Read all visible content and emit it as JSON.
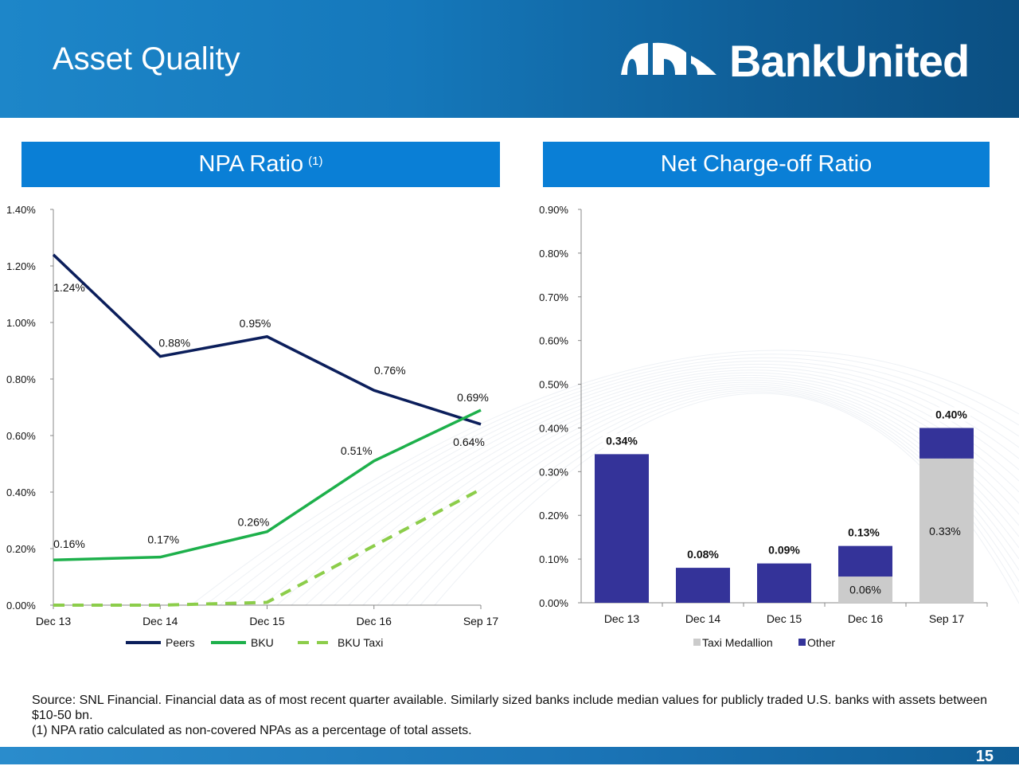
{
  "header": {
    "title": "Asset Quality",
    "logo_text": "BankUnited"
  },
  "panels": [
    {
      "title": "NPA Ratio",
      "superscript": "(1)"
    },
    {
      "title": "Net Charge-off Ratio",
      "superscript": ""
    }
  ],
  "chart_data": [
    {
      "type": "line",
      "title": "NPA Ratio (1)",
      "categories": [
        "Dec 13",
        "Dec 14",
        "Dec 15",
        "Dec 16",
        "Sep 17"
      ],
      "ylim": [
        0,
        1.4
      ],
      "yticks": [
        "0.00%",
        "0.20%",
        "0.40%",
        "0.60%",
        "0.80%",
        "1.00%",
        "1.20%",
        "1.40%"
      ],
      "legend_position": "bottom",
      "series": [
        {
          "name": "Peers",
          "color": "#0b1e5b",
          "style": "solid",
          "values": [
            1.24,
            0.88,
            0.95,
            0.76,
            0.64
          ],
          "labels": [
            "1.24%",
            "0.88%",
            "0.95%",
            "0.76%",
            "0.64%"
          ]
        },
        {
          "name": "BKU",
          "color": "#1db04b",
          "style": "solid",
          "values": [
            0.16,
            0.17,
            0.26,
            0.51,
            0.69
          ],
          "labels": [
            "0.16%",
            "0.17%",
            "0.26%",
            "0.51%",
            "0.69%"
          ]
        },
        {
          "name": "BKU Taxi",
          "color": "#8ccd4a",
          "style": "dashed",
          "values": [
            0.0,
            0.0,
            0.01,
            0.21,
            0.41
          ],
          "labels": []
        }
      ]
    },
    {
      "type": "bar",
      "stacked": true,
      "title": "Net Charge-off Ratio",
      "categories": [
        "Dec 13",
        "Dec 14",
        "Dec 15",
        "Dec 16",
        "Sep 17"
      ],
      "ylim": [
        0,
        0.9
      ],
      "yticks": [
        "0.00%",
        "0.10%",
        "0.20%",
        "0.30%",
        "0.40%",
        "0.50%",
        "0.60%",
        "0.70%",
        "0.80%",
        "0.90%"
      ],
      "legend_position": "bottom",
      "series": [
        {
          "name": "Taxi Medallion",
          "color": "#cbcbcb",
          "values": [
            0,
            0,
            0,
            0.06,
            0.33
          ],
          "labels": [
            "",
            "",
            "",
            "0.06%",
            "0.33%"
          ]
        },
        {
          "name": "Other",
          "color": "#343399",
          "values": [
            0.34,
            0.08,
            0.09,
            0.07,
            0.07
          ],
          "labels": []
        }
      ],
      "total_labels": [
        "0.34%",
        "0.08%",
        "0.09%",
        "0.13%",
        "0.40%"
      ]
    }
  ],
  "footnotes": {
    "source": "Source: SNL Financial. Financial data as of most recent quarter available. Similarly sized banks include median values for publicly traded U.S. banks with assets between $10-50 bn.",
    "note1": "(1) NPA ratio calculated as non-covered NPAs as a percentage of total assets."
  },
  "page_number": "15"
}
